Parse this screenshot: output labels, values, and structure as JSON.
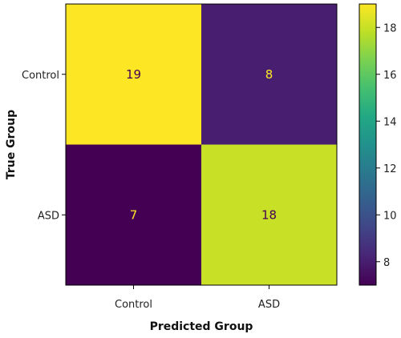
{
  "chart_data": {
    "type": "heatmap",
    "title": "",
    "xlabel": "Predicted Group",
    "ylabel": "True Group",
    "x_categories": [
      "Control",
      "ASD"
    ],
    "y_categories": [
      "Control",
      "ASD"
    ],
    "values": [
      [
        19,
        8
      ],
      [
        7,
        18
      ]
    ],
    "colormap": "viridis",
    "colorbar": {
      "min": 7,
      "max": 19,
      "ticks": [
        8,
        10,
        12,
        14,
        16,
        18
      ]
    },
    "cell_text_colors": {
      "on_dark": "#fde725",
      "on_light": "#440154"
    },
    "grid": false
  }
}
